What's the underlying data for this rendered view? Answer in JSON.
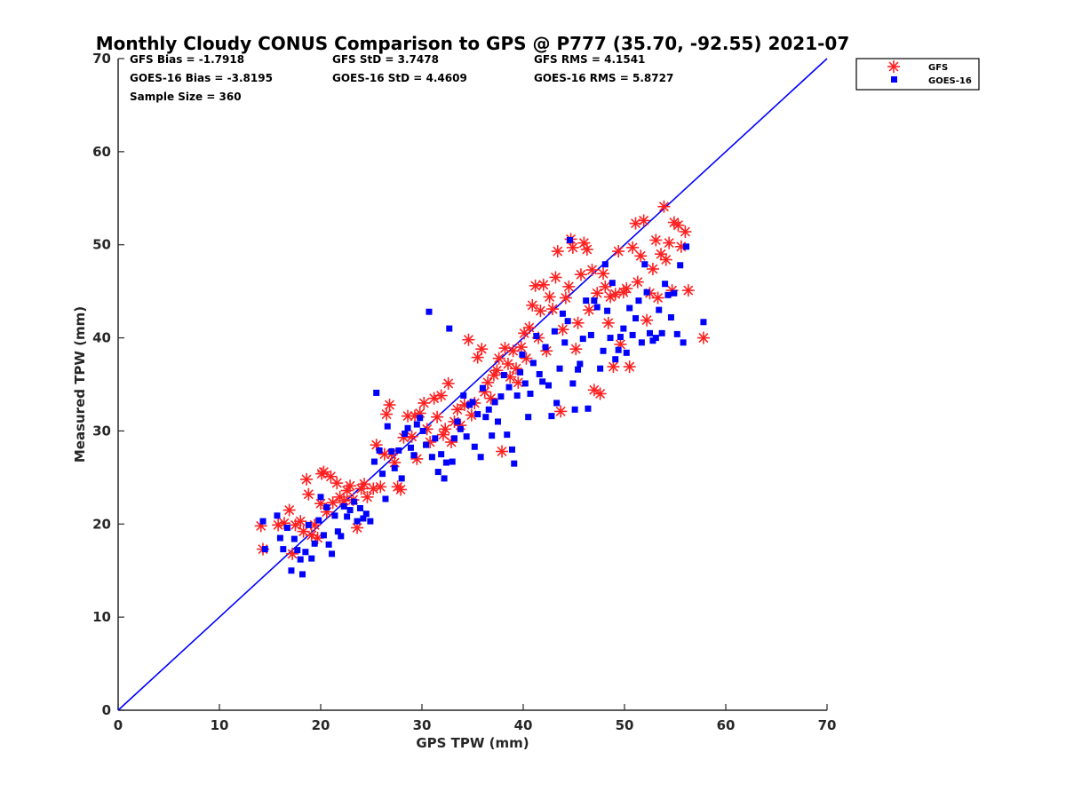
{
  "chart_data": {
    "type": "scatter",
    "title": "Monthly Cloudy CONUS Comparison to GPS @ P777 (35.70, -92.55) 2021-07",
    "xlabel": "GPS TPW (mm)",
    "ylabel": "Measured TPW (mm)",
    "xlim": [
      0,
      70
    ],
    "ylim": [
      0,
      70
    ],
    "xticks": [
      "0",
      "10",
      "20",
      "30",
      "40",
      "50",
      "60",
      "70"
    ],
    "yticks": [
      "0",
      "10",
      "20",
      "30",
      "40",
      "50",
      "60",
      "70"
    ],
    "grid": false,
    "legend_position": "outside-top-right",
    "stats": {
      "gfs_bias": "GFS Bias = -1.7918",
      "gfs_std": "GFS StD = 3.7478",
      "gfs_rms": "GFS RMS = 4.1541",
      "goes_bias": "GOES-16 Bias = -3.8195",
      "goes_std": "GOES-16 StD = 4.4609",
      "goes_rms": "GOES-16 RMS = 5.8727",
      "sample_size": "Sample Size = 360"
    },
    "reference_line": {
      "name": "1:1",
      "x": [
        0,
        70
      ],
      "y": [
        0,
        70
      ],
      "color": "#0000ff"
    },
    "series": [
      {
        "name": "GFS",
        "marker": "asterisk",
        "color": "#ff2020",
        "points": [
          [
            14.1,
            19.8
          ],
          [
            14.3,
            17.3
          ],
          [
            15.8,
            19.9
          ],
          [
            16.4,
            20.1
          ],
          [
            16.9,
            21.5
          ],
          [
            17.2,
            16.8
          ],
          [
            17.5,
            19.9
          ],
          [
            18.0,
            20.3
          ],
          [
            18.3,
            19.2
          ],
          [
            18.6,
            24.8
          ],
          [
            18.8,
            23.2
          ],
          [
            19.1,
            18.8
          ],
          [
            19.4,
            19.9
          ],
          [
            19.7,
            18.5
          ],
          [
            20.0,
            22.2
          ],
          [
            20.1,
            25.4
          ],
          [
            20.3,
            25.6
          ],
          [
            20.6,
            21.3
          ],
          [
            21.0,
            25.1
          ],
          [
            21.2,
            22.3
          ],
          [
            21.6,
            24.4
          ],
          [
            21.9,
            22.9
          ],
          [
            22.3,
            22.5
          ],
          [
            22.6,
            23.6
          ],
          [
            22.9,
            24.1
          ],
          [
            23.2,
            22.6
          ],
          [
            23.6,
            19.6
          ],
          [
            24.0,
            23.8
          ],
          [
            24.3,
            24.3
          ],
          [
            24.6,
            22.9
          ],
          [
            25.2,
            23.8
          ],
          [
            25.5,
            28.5
          ],
          [
            25.9,
            24.0
          ],
          [
            26.3,
            27.5
          ],
          [
            26.5,
            31.8
          ],
          [
            26.8,
            32.8
          ],
          [
            27.0,
            27.5
          ],
          [
            27.3,
            26.6
          ],
          [
            27.6,
            24.0
          ],
          [
            27.9,
            23.7
          ],
          [
            28.2,
            29.3
          ],
          [
            28.6,
            31.6
          ],
          [
            29.0,
            29.4
          ],
          [
            29.3,
            31.6
          ],
          [
            29.5,
            27.0
          ],
          [
            29.8,
            31.9
          ],
          [
            30.2,
            33.0
          ],
          [
            30.5,
            30.2
          ],
          [
            30.8,
            28.8
          ],
          [
            31.2,
            33.5
          ],
          [
            31.5,
            31.5
          ],
          [
            31.9,
            33.8
          ],
          [
            32.1,
            29.6
          ],
          [
            32.3,
            30.2
          ],
          [
            32.6,
            35.1
          ],
          [
            32.9,
            28.8
          ],
          [
            33.2,
            31.0
          ],
          [
            33.5,
            32.3
          ],
          [
            33.8,
            30.6
          ],
          [
            34.2,
            32.8
          ],
          [
            34.6,
            39.8
          ],
          [
            34.9,
            31.7
          ],
          [
            35.2,
            33.0
          ],
          [
            35.5,
            37.9
          ],
          [
            35.9,
            38.8
          ],
          [
            36.2,
            34.2
          ],
          [
            36.5,
            35.2
          ],
          [
            36.8,
            33.5
          ],
          [
            37.1,
            36.0
          ],
          [
            37.4,
            36.5
          ],
          [
            37.6,
            37.8
          ],
          [
            37.9,
            27.8
          ],
          [
            38.2,
            38.9
          ],
          [
            38.5,
            37.2
          ],
          [
            38.7,
            35.8
          ],
          [
            39.0,
            38.6
          ],
          [
            39.3,
            36.7
          ],
          [
            39.5,
            35.2
          ],
          [
            39.8,
            39.0
          ],
          [
            40.1,
            40.5
          ],
          [
            40.3,
            37.8
          ],
          [
            40.6,
            41.1
          ],
          [
            40.9,
            43.5
          ],
          [
            41.2,
            45.6
          ],
          [
            41.5,
            40.0
          ],
          [
            41.7,
            42.9
          ],
          [
            42.0,
            45.7
          ],
          [
            42.3,
            38.6
          ],
          [
            42.6,
            44.4
          ],
          [
            42.9,
            43.1
          ],
          [
            43.2,
            46.5
          ],
          [
            43.4,
            49.3
          ],
          [
            43.7,
            32.1
          ],
          [
            43.9,
            40.9
          ],
          [
            44.2,
            44.3
          ],
          [
            44.5,
            45.5
          ],
          [
            44.7,
            50.6
          ],
          [
            44.9,
            49.7
          ],
          [
            45.2,
            38.8
          ],
          [
            45.4,
            41.6
          ],
          [
            45.7,
            46.8
          ],
          [
            46.0,
            50.2
          ],
          [
            46.3,
            49.5
          ],
          [
            46.5,
            43.0
          ],
          [
            46.8,
            47.3
          ],
          [
            47.0,
            34.4
          ],
          [
            47.3,
            44.8
          ],
          [
            47.6,
            34.0
          ],
          [
            47.9,
            46.9
          ],
          [
            48.1,
            45.5
          ],
          [
            48.4,
            41.6
          ],
          [
            48.6,
            44.4
          ],
          [
            48.9,
            36.9
          ],
          [
            49.1,
            44.7
          ],
          [
            49.4,
            49.3
          ],
          [
            49.6,
            39.3
          ],
          [
            49.9,
            44.9
          ],
          [
            50.2,
            45.3
          ],
          [
            50.5,
            36.9
          ],
          [
            50.8,
            49.7
          ],
          [
            51.1,
            52.3
          ],
          [
            51.3,
            46.0
          ],
          [
            51.6,
            48.8
          ],
          [
            51.9,
            52.6
          ],
          [
            52.2,
            41.9
          ],
          [
            52.5,
            44.8
          ],
          [
            52.8,
            47.4
          ],
          [
            53.1,
            50.5
          ],
          [
            53.3,
            44.3
          ],
          [
            53.6,
            49.0
          ],
          [
            53.9,
            54.1
          ],
          [
            54.1,
            48.4
          ],
          [
            54.4,
            50.2
          ],
          [
            54.7,
            45.1
          ],
          [
            54.9,
            52.4
          ],
          [
            55.3,
            52.1
          ],
          [
            55.6,
            49.8
          ],
          [
            56.0,
            51.4
          ],
          [
            56.3,
            45.1
          ],
          [
            57.8,
            40.0
          ]
        ]
      },
      {
        "name": "GOES-16",
        "marker": "square",
        "color": "#0000ff",
        "points": [
          [
            14.3,
            20.3
          ],
          [
            14.5,
            17.3
          ],
          [
            15.7,
            20.9
          ],
          [
            16.0,
            18.5
          ],
          [
            16.3,
            17.3
          ],
          [
            16.7,
            19.6
          ],
          [
            17.1,
            15.0
          ],
          [
            17.4,
            18.4
          ],
          [
            17.7,
            17.2
          ],
          [
            18.0,
            16.2
          ],
          [
            18.2,
            14.6
          ],
          [
            18.5,
            17.0
          ],
          [
            18.8,
            19.9
          ],
          [
            19.1,
            16.3
          ],
          [
            19.4,
            17.9
          ],
          [
            19.8,
            20.4
          ],
          [
            20.0,
            22.9
          ],
          [
            20.3,
            18.8
          ],
          [
            20.6,
            21.8
          ],
          [
            20.8,
            17.8
          ],
          [
            21.1,
            16.8
          ],
          [
            21.4,
            20.9
          ],
          [
            21.7,
            19.2
          ],
          [
            22.0,
            18.7
          ],
          [
            22.3,
            21.9
          ],
          [
            22.6,
            20.8
          ],
          [
            22.9,
            21.5
          ],
          [
            23.3,
            22.4
          ],
          [
            23.6,
            20.3
          ],
          [
            23.9,
            21.7
          ],
          [
            24.2,
            20.6
          ],
          [
            24.5,
            21.1
          ],
          [
            24.9,
            20.3
          ],
          [
            25.3,
            26.7
          ],
          [
            25.5,
            34.1
          ],
          [
            25.8,
            27.9
          ],
          [
            26.1,
            25.4
          ],
          [
            26.4,
            22.7
          ],
          [
            26.6,
            30.5
          ],
          [
            27.0,
            27.8
          ],
          [
            27.3,
            26.0
          ],
          [
            27.7,
            27.9
          ],
          [
            28.0,
            24.9
          ],
          [
            28.3,
            29.7
          ],
          [
            28.6,
            30.3
          ],
          [
            28.9,
            28.2
          ],
          [
            29.2,
            27.4
          ],
          [
            29.5,
            30.7
          ],
          [
            29.8,
            31.4
          ],
          [
            30.1,
            30.0
          ],
          [
            30.4,
            28.5
          ],
          [
            30.7,
            42.8
          ],
          [
            31.0,
            27.2
          ],
          [
            31.3,
            29.2
          ],
          [
            31.6,
            25.6
          ],
          [
            31.9,
            27.5
          ],
          [
            32.2,
            24.9
          ],
          [
            32.4,
            26.6
          ],
          [
            32.7,
            41.0
          ],
          [
            33.0,
            26.7
          ],
          [
            33.2,
            29.2
          ],
          [
            33.5,
            31.0
          ],
          [
            33.8,
            30.2
          ],
          [
            34.1,
            33.8
          ],
          [
            34.4,
            29.4
          ],
          [
            34.7,
            32.8
          ],
          [
            35.0,
            33.1
          ],
          [
            35.2,
            28.3
          ],
          [
            35.5,
            31.8
          ],
          [
            35.8,
            27.2
          ],
          [
            36.0,
            34.6
          ],
          [
            36.3,
            31.5
          ],
          [
            36.6,
            32.3
          ],
          [
            36.9,
            29.5
          ],
          [
            37.2,
            33.1
          ],
          [
            37.5,
            31.0
          ],
          [
            37.8,
            33.7
          ],
          [
            38.1,
            36.0
          ],
          [
            38.4,
            29.6
          ],
          [
            38.6,
            34.7
          ],
          [
            38.9,
            28.0
          ],
          [
            39.1,
            26.5
          ],
          [
            39.4,
            33.8
          ],
          [
            39.7,
            36.3
          ],
          [
            39.9,
            38.2
          ],
          [
            40.2,
            35.1
          ],
          [
            40.5,
            31.5
          ],
          [
            40.7,
            34.0
          ],
          [
            41.0,
            37.3
          ],
          [
            41.3,
            40.2
          ],
          [
            41.6,
            36.1
          ],
          [
            41.9,
            35.3
          ],
          [
            42.2,
            39.0
          ],
          [
            42.5,
            34.9
          ],
          [
            42.8,
            31.6
          ],
          [
            43.1,
            40.7
          ],
          [
            43.3,
            33.0
          ],
          [
            43.6,
            36.7
          ],
          [
            43.9,
            42.6
          ],
          [
            44.1,
            39.5
          ],
          [
            44.4,
            41.8
          ],
          [
            44.6,
            50.5
          ],
          [
            44.9,
            35.1
          ],
          [
            45.1,
            32.3
          ],
          [
            45.4,
            36.6
          ],
          [
            45.6,
            37.2
          ],
          [
            45.9,
            39.9
          ],
          [
            46.2,
            44.0
          ],
          [
            46.4,
            32.4
          ],
          [
            46.7,
            40.3
          ],
          [
            47.0,
            44.0
          ],
          [
            47.3,
            43.3
          ],
          [
            47.6,
            36.7
          ],
          [
            47.9,
            38.6
          ],
          [
            48.1,
            47.9
          ],
          [
            48.3,
            42.9
          ],
          [
            48.6,
            40.0
          ],
          [
            48.8,
            45.9
          ],
          [
            49.1,
            37.7
          ],
          [
            49.4,
            38.7
          ],
          [
            49.6,
            40.1
          ],
          [
            49.9,
            41.0
          ],
          [
            50.2,
            38.4
          ],
          [
            50.5,
            43.2
          ],
          [
            50.8,
            40.3
          ],
          [
            51.1,
            42.1
          ],
          [
            51.4,
            44.0
          ],
          [
            51.7,
            39.5
          ],
          [
            52.0,
            47.9
          ],
          [
            52.2,
            44.9
          ],
          [
            52.5,
            40.5
          ],
          [
            52.8,
            39.7
          ],
          [
            53.1,
            40.0
          ],
          [
            53.4,
            43.0
          ],
          [
            53.7,
            40.5
          ],
          [
            54.0,
            45.8
          ],
          [
            54.3,
            44.6
          ],
          [
            54.6,
            42.2
          ],
          [
            54.9,
            44.8
          ],
          [
            55.2,
            40.4
          ],
          [
            55.5,
            47.8
          ],
          [
            55.8,
            39.5
          ],
          [
            56.1,
            49.8
          ],
          [
            57.8,
            41.7
          ]
        ]
      }
    ]
  }
}
